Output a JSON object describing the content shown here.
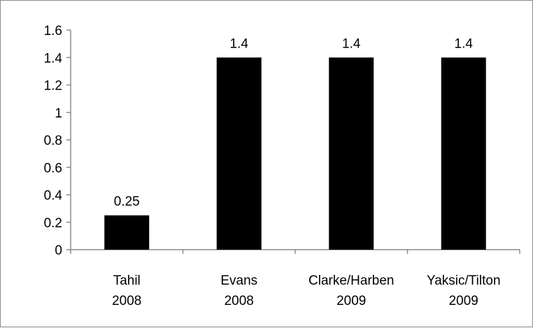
{
  "chart_data": {
    "type": "bar",
    "categories": [
      [
        "Tahil",
        "2008"
      ],
      [
        "Evans",
        "2008"
      ],
      [
        "Clarke/Harben",
        "2009"
      ],
      [
        "Yaksic/Tilton",
        "2009"
      ]
    ],
    "values": [
      0.25,
      1.4,
      1.4,
      1.4
    ],
    "data_labels": [
      "0.25",
      "1.4",
      "1.4",
      "1.4"
    ],
    "title": "",
    "xlabel": "",
    "ylabel": "",
    "ylim": [
      0,
      1.6
    ],
    "yticks": [
      "0",
      "0.2",
      "0.4",
      "0.6",
      "0.8",
      "1",
      "1.2",
      "1.4",
      "1.6"
    ],
    "grid": false,
    "legend": "none",
    "bar_color": "#000000"
  }
}
